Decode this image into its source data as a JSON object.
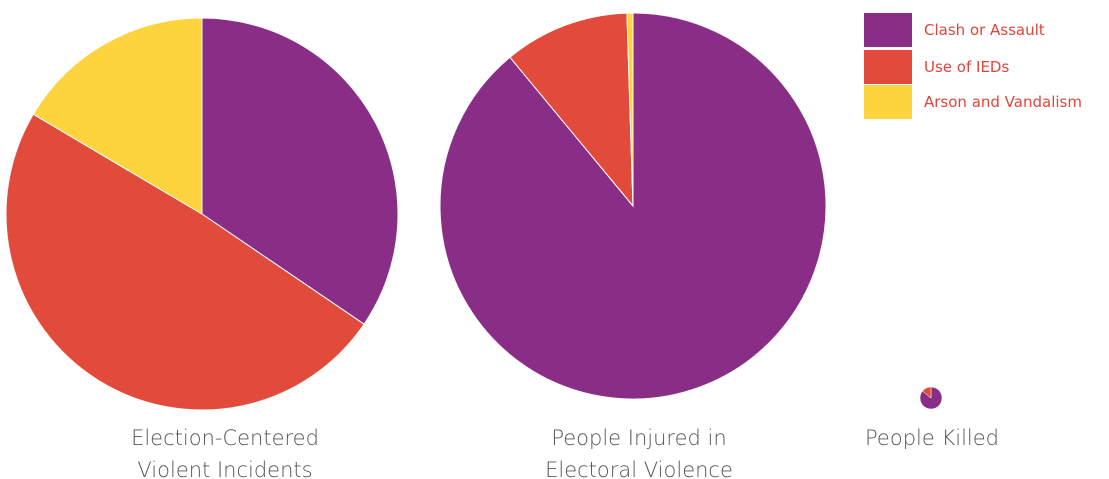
{
  "colors": {
    "clash": "#8a2d87",
    "ieds": "#e24b3b",
    "arson": "#fdd33e"
  },
  "chart_data": {
    "type": "pie",
    "legend": {
      "position": "top-right",
      "entries": [
        "Clash or Assault",
        "Use of IEDs",
        "Arson and Vandalism"
      ]
    },
    "pies": [
      {
        "title_lines": [
          "Election-Centered",
          "Violent Incidents"
        ],
        "slices": [
          {
            "name": "Clash or Assault",
            "value": 34.5
          },
          {
            "name": "Use of IEDs",
            "value": 49.0
          },
          {
            "name": "Arson and Vandalism",
            "value": 16.5
          }
        ]
      },
      {
        "title_lines": [
          "People Injured in",
          "Electoral Violence"
        ],
        "slices": [
          {
            "name": "Clash or Assault",
            "value": 89.0
          },
          {
            "name": "Use of IEDs",
            "value": 10.5
          },
          {
            "name": "Arson and Vandalism",
            "value": 0.5
          }
        ]
      },
      {
        "title_lines": [
          "People Killed"
        ],
        "slices": [
          {
            "name": "Clash or Assault",
            "value": 86.0
          },
          {
            "name": "Use of IEDs",
            "value": 14.0
          },
          {
            "name": "Arson and Vandalism",
            "value": 0
          }
        ]
      }
    ]
  }
}
